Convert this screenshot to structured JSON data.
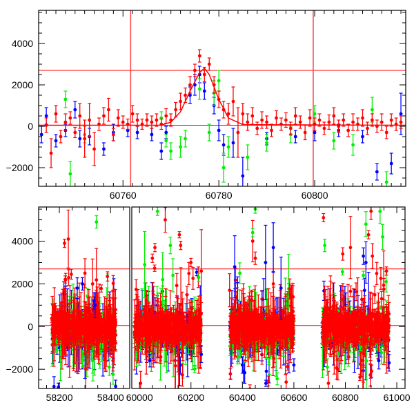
{
  "chart_data": [
    {
      "type": "scatter",
      "title": "",
      "xlabel": "",
      "ylabel": "",
      "xlim": [
        60742.4,
        60819
      ],
      "ylim": [
        -2900,
        5600
      ],
      "x_tick_labels": [
        "60760",
        "60780",
        "60800"
      ],
      "y_tick_labels": [
        "-2000",
        "0",
        "2000",
        "4000"
      ],
      "hlines": [
        2700,
        50
      ],
      "vlines": [
        60761.6,
        60799.7
      ],
      "series": [
        {
          "name": "red",
          "color": "#ff0000",
          "points": [
            [
              60742,
              100,
              300
            ],
            [
              60744,
              50,
              350
            ],
            [
              60745,
              -1300,
              700
            ],
            [
              60746,
              600,
              400
            ],
            [
              60747,
              -500,
              300
            ],
            [
              60748,
              200,
              400
            ],
            [
              60749,
              400,
              300
            ],
            [
              60750,
              -300,
              250
            ],
            [
              60751,
              500,
              600
            ],
            [
              60752,
              -600,
              900
            ],
            [
              60753,
              300,
              800
            ],
            [
              60754,
              -1100,
              800
            ],
            [
              60755,
              100,
              300
            ],
            [
              60756,
              500,
              400
            ],
            [
              60757,
              800,
              550
            ],
            [
              60758,
              -400,
              300
            ],
            [
              60759,
              400,
              400
            ],
            [
              60760,
              200,
              300
            ],
            [
              60761,
              100,
              250
            ],
            [
              60762,
              600,
              400
            ],
            [
              60763,
              300,
              300
            ],
            [
              60764,
              100,
              250
            ],
            [
              60765,
              300,
              300
            ],
            [
              60766,
              200,
              300
            ],
            [
              60767,
              300,
              300
            ],
            [
              60768,
              100,
              250
            ],
            [
              60769,
              500,
              350
            ],
            [
              60770,
              300,
              300
            ],
            [
              60771,
              800,
              350
            ],
            [
              60772,
              1200,
              400
            ],
            [
              60773,
              1500,
              350
            ],
            [
              60774,
              2000,
              400
            ],
            [
              60775,
              2700,
              300
            ],
            [
              60776,
              3400,
              300
            ],
            [
              60777,
              2500,
              350
            ],
            [
              60778,
              3000,
              300
            ],
            [
              60779,
              2000,
              400
            ],
            [
              60780,
              1300,
              400
            ],
            [
              60781,
              800,
              400
            ],
            [
              60782,
              600,
              500
            ],
            [
              60783,
              1200,
              700
            ],
            [
              60784,
              -300,
              1200
            ],
            [
              60785,
              600,
              500
            ],
            [
              60786,
              200,
              400
            ],
            [
              60787,
              500,
              400
            ],
            [
              60788,
              -100,
              300
            ],
            [
              60789,
              300,
              400
            ],
            [
              60790,
              200,
              300
            ],
            [
              60791,
              -200,
              300
            ],
            [
              60792,
              400,
              350
            ],
            [
              60793,
              100,
              300
            ],
            [
              60794,
              300,
              350
            ],
            [
              60795,
              -100,
              300
            ],
            [
              60796,
              500,
              400
            ],
            [
              60797,
              200,
              300
            ],
            [
              60798,
              -300,
              350
            ],
            [
              60799,
              400,
              400
            ],
            [
              60800,
              100,
              300
            ],
            [
              60801,
              300,
              300
            ],
            [
              60802,
              -100,
              300
            ],
            [
              60803,
              200,
              350
            ],
            [
              60804,
              500,
              400
            ],
            [
              60805,
              0,
              300
            ],
            [
              60806,
              300,
              300
            ],
            [
              60807,
              -200,
              300
            ],
            [
              60808,
              200,
              400
            ],
            [
              60809,
              100,
              300
            ],
            [
              60810,
              400,
              400
            ],
            [
              60811,
              -100,
              300
            ],
            [
              60812,
              300,
              300
            ],
            [
              60813,
              0,
              300
            ],
            [
              60814,
              200,
              400
            ],
            [
              60815,
              -300,
              300
            ],
            [
              60816,
              300,
              300
            ],
            [
              60817,
              100,
              300
            ],
            [
              60818,
              200,
              300
            ]
          ]
        },
        {
          "name": "blue",
          "color": "#0000ff",
          "points": [
            [
              60742,
              100,
              300
            ],
            [
              60743,
              -400,
              400
            ],
            [
              60744,
              500,
              400
            ],
            [
              60746,
              -700,
              300
            ],
            [
              60748,
              -200,
              300
            ],
            [
              60750,
              800,
              400
            ],
            [
              60751,
              -600,
              400
            ],
            [
              60753,
              -500,
              400
            ],
            [
              60756,
              -1100,
              300
            ],
            [
              60758,
              -300,
              400
            ],
            [
              60761,
              -200,
              300
            ],
            [
              60763,
              -300,
              300
            ],
            [
              60766,
              -400,
              300
            ],
            [
              60768,
              -1200,
              400
            ],
            [
              60769,
              -300,
              300
            ],
            [
              60774,
              1500,
              400
            ],
            [
              60775,
              2000,
              500
            ],
            [
              60776,
              2500,
              400
            ],
            [
              60777,
              1700,
              400
            ],
            [
              60779,
              1000,
              400
            ],
            [
              60780,
              -200,
              500
            ],
            [
              60781,
              -900,
              500
            ],
            [
              60783,
              -800,
              700
            ],
            [
              60785,
              -2400,
              900
            ],
            [
              60790,
              -600,
              300
            ],
            [
              60796,
              -500,
              300
            ],
            [
              60800,
              -300,
              400
            ],
            [
              60805,
              -200,
              300
            ],
            [
              60810,
              -500,
              300
            ],
            [
              60813,
              -2200,
              400
            ],
            [
              60816,
              -1800,
              500
            ],
            [
              60818,
              600,
              1000
            ]
          ]
        },
        {
          "name": "green",
          "color": "#00ee00",
          "points": [
            [
              60748,
              1300,
              400
            ],
            [
              60749,
              -2300,
              600
            ],
            [
              60752,
              -400,
              400
            ],
            [
              60768,
              400,
              300
            ],
            [
              60769,
              -700,
              300
            ],
            [
              60770,
              -1200,
              400
            ],
            [
              60772,
              -1000,
              500
            ],
            [
              60773,
              -600,
              400
            ],
            [
              60776,
              1800,
              500
            ],
            [
              60778,
              -300,
              400
            ],
            [
              60779,
              1600,
              600
            ],
            [
              60780,
              2200,
              500
            ],
            [
              60781,
              -2000,
              700
            ],
            [
              60782,
              -1000,
              500
            ],
            [
              60786,
              -1500,
              600
            ],
            [
              60790,
              -800,
              400
            ],
            [
              60795,
              -400,
              400
            ],
            [
              60800,
              600,
              400
            ],
            [
              60804,
              -700,
              400
            ],
            [
              60808,
              -900,
              500
            ],
            [
              60812,
              800,
              600
            ],
            [
              60815,
              -2700,
              500
            ]
          ]
        },
        {
          "name": "model",
          "color": "#ff0000",
          "line": [
            [
              60742.4,
              50
            ],
            [
              60768,
              50
            ],
            [
              60770,
              200
            ],
            [
              60772,
              700
            ],
            [
              60774,
              1700
            ],
            [
              60776,
              2600
            ],
            [
              60777,
              2800
            ],
            [
              60778,
              2500
            ],
            [
              60780,
              1300
            ],
            [
              60782,
              400
            ],
            [
              60785,
              80
            ],
            [
              60819,
              50
            ]
          ]
        }
      ]
    },
    {
      "type": "scatter",
      "title": "",
      "xlabel": "",
      "ylabel": "",
      "broken_x_axis": true,
      "xlim_segments": [
        [
          58119,
          58475
        ],
        [
          59970,
          61032
        ]
      ],
      "ylim": [
        -2900,
        5600
      ],
      "x_tick_labels": [
        "58200",
        "58400",
        "60000",
        "60200",
        "60400",
        "60600",
        "60800",
        "61000"
      ],
      "y_tick_labels": [
        "-2000",
        "0",
        "2000",
        "4000"
      ],
      "hlines": [
        2700,
        50
      ],
      "seasons": [
        [
          58170,
          58420
        ],
        [
          59980,
          60240
        ],
        [
          60350,
          60600
        ],
        [
          60710,
          60970
        ]
      ],
      "scatter_sigma": 450,
      "series": [
        {
          "name": "red",
          "color": "#ff0000",
          "points": [
            [
              58220,
              3900,
              200
            ],
            [
              58235,
              4100,
              1400
            ],
            [
              58225,
              2200,
              300
            ],
            [
              58300,
              2500,
              700
            ],
            [
              58330,
              2000,
              1200
            ],
            [
              58410,
              -1600,
              500
            ],
            [
              60060,
              3700,
              200
            ],
            [
              60050,
              3200,
              200
            ],
            [
              60100,
              5000,
              600
            ],
            [
              60155,
              4300,
              150
            ],
            [
              60160,
              3800,
              200
            ],
            [
              60200,
              3000,
              200
            ],
            [
              60240,
              2600,
              2000
            ],
            [
              60350,
              1700,
              800
            ],
            [
              60440,
              4000,
              1000
            ],
            [
              60450,
              3200,
              300
            ],
            [
              60520,
              2000,
              600
            ],
            [
              60570,
              -2600,
              400
            ],
            [
              60715,
              5100,
              200
            ],
            [
              60790,
              3400,
              300
            ],
            [
              60820,
              3700,
              1500
            ],
            [
              60890,
              4300,
              200
            ],
            [
              60900,
              5400,
              400
            ],
            [
              60905,
              3300,
              600
            ],
            [
              60960,
              2600,
              200
            ]
          ]
        },
        {
          "name": "blue",
          "color": "#0000ff",
          "points": [
            [
              58270,
              1800,
              500
            ],
            [
              58290,
              2000,
              300
            ],
            [
              58335,
              1200,
              400
            ],
            [
              58340,
              1000,
              600
            ],
            [
              58420,
              -2800,
              300
            ],
            [
              60040,
              -1600,
              300
            ],
            [
              60240,
              -1300,
              400
            ],
            [
              60370,
              2800,
              1500
            ],
            [
              60400,
              -1800,
              400
            ],
            [
              60490,
              3000,
              1800
            ],
            [
              60520,
              3700,
              1200
            ],
            [
              60550,
              1800,
              1500
            ],
            [
              60600,
              -1800,
              300
            ],
            [
              60870,
              3300,
              400
            ],
            [
              60880,
              3000,
              1000
            ],
            [
              60930,
              -1600,
              400
            ],
            [
              60970,
              -1700,
              400
            ]
          ]
        },
        {
          "name": "green",
          "color": "#00ee00",
          "points": [
            [
              58345,
              4900,
              300
            ],
            [
              58290,
              -1500,
              400
            ],
            [
              58330,
              -1600,
              600
            ],
            [
              58395,
              -1900,
              400
            ],
            [
              60020,
              2900,
              1600
            ],
            [
              60070,
              5400,
              200
            ],
            [
              60090,
              2200,
              1300
            ],
            [
              60120,
              3800,
              400
            ],
            [
              60130,
              2400,
              800
            ],
            [
              60230,
              2300,
              200
            ],
            [
              60390,
              2500,
              500
            ],
            [
              60440,
              4400,
              200
            ],
            [
              60450,
              5500,
              200
            ],
            [
              60720,
              3800,
              300
            ],
            [
              60730,
              -1900,
              400
            ],
            [
              60870,
              2400,
              200
            ],
            [
              60880,
              4800,
              600
            ],
            [
              60935,
              5400,
              600
            ],
            [
              60945,
              4200,
              600
            ]
          ]
        }
      ]
    }
  ]
}
